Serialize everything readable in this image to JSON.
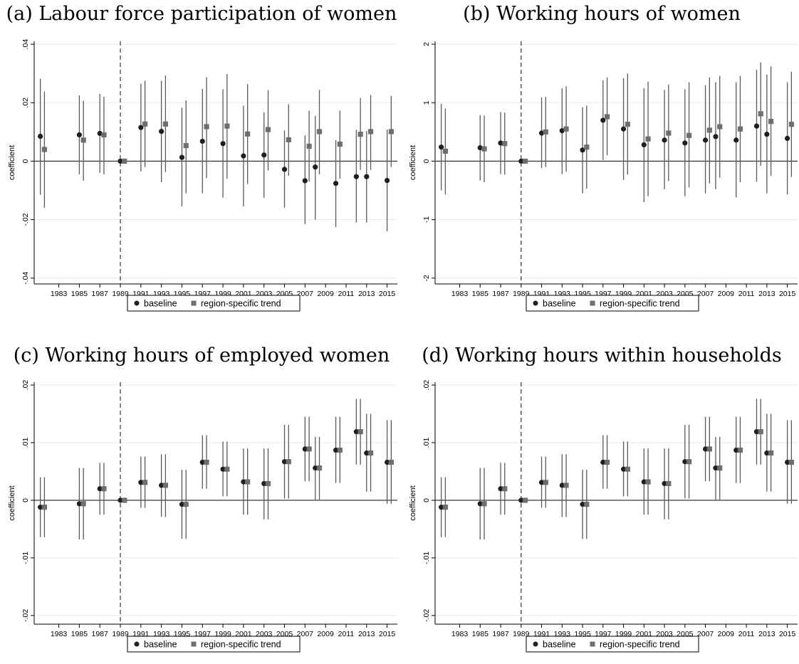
{
  "figure": {
    "baseline_color": "#1f1f1f",
    "trend_color": "#6e6e6e",
    "ci_color": "#5a5a5a",
    "grid_color": "#e8e8e8"
  },
  "chart_data": [
    {
      "type": "scatter",
      "title": "(a) Labour force participation of women",
      "ylabel": "coefficient",
      "ylim": [
        -0.042,
        0.041
      ],
      "yticks": [
        -0.04,
        -0.02,
        0,
        0.02,
        0.04
      ],
      "ytick_labels": [
        "-.04",
        "-.02",
        "0",
        ".02",
        ".04"
      ],
      "xlim": [
        1980.6,
        2016.0
      ],
      "xticks": [
        1983,
        1985,
        1987,
        1989,
        1991,
        1993,
        1995,
        1997,
        1999,
        2001,
        2003,
        2005,
        2007,
        2009,
        2011,
        2013,
        2015
      ],
      "xtick_labels": [
        "1983",
        "1985",
        "1987",
        "1989",
        "1991",
        "1993",
        "1995",
        "1997",
        "1999",
        "2001",
        "2003",
        "2005",
        "2007",
        "2009",
        "2011",
        "2013",
        "2015"
      ],
      "reference_year": 1989,
      "grid": true,
      "legend": {
        "placement": "bottom",
        "entries": [
          "baseline",
          "region-specific trend"
        ]
      },
      "series": [
        {
          "name": "baseline",
          "marker": "circle",
          "x": [
            1981.2,
            1985,
            1987,
            1989,
            1991,
            1993,
            1995,
            1997,
            1999,
            2001,
            2003,
            2005,
            2007,
            2008,
            2010,
            2012,
            2013,
            2015
          ],
          "y": [
            0.0085,
            0.009,
            0.0095,
            0.0,
            0.0115,
            0.0102,
            0.0013,
            0.0068,
            0.006,
            0.0018,
            0.0021,
            -0.0028,
            -0.0067,
            -0.002,
            -0.0076,
            -0.0053,
            -0.0053,
            -0.0066
          ],
          "lo": [
            -0.0115,
            -0.0045,
            -0.004,
            0.0,
            -0.0035,
            -0.0072,
            -0.0155,
            -0.011,
            -0.0125,
            -0.0155,
            -0.0125,
            -0.016,
            -0.0215,
            -0.02,
            -0.0225,
            -0.021,
            -0.021,
            -0.024
          ],
          "hi": [
            0.0282,
            0.0225,
            0.023,
            0.0,
            0.0265,
            0.0275,
            0.0183,
            0.0247,
            0.0246,
            0.019,
            0.0167,
            0.0105,
            0.0088,
            0.0155,
            0.0072,
            0.0107,
            0.0103,
            0.0108
          ]
        },
        {
          "name": "region-specific trend",
          "marker": "square",
          "x": [
            1981.6,
            1985.4,
            1987.4,
            1989.4,
            1991.4,
            1993.4,
            1995.4,
            1997.4,
            1999.4,
            2001.4,
            2003.4,
            2005.4,
            2007.4,
            2008.4,
            2010.4,
            2012.4,
            2013.4,
            2015.4
          ],
          "y": [
            0.004,
            0.0072,
            0.009,
            0.0,
            0.0127,
            0.0127,
            0.0053,
            0.0118,
            0.012,
            0.0093,
            0.0108,
            0.0073,
            0.0051,
            0.0101,
            0.0058,
            0.0092,
            0.0101,
            0.0101
          ],
          "lo": [
            -0.016,
            -0.0067,
            -0.0045,
            0.0,
            -0.002,
            -0.0037,
            -0.011,
            -0.0058,
            -0.006,
            -0.0078,
            -0.0032,
            -0.005,
            -0.007,
            -0.0045,
            -0.006,
            -0.003,
            -0.003,
            -0.002
          ],
          "hi": [
            0.0238,
            0.0207,
            0.022,
            0.0,
            0.0275,
            0.0293,
            0.0208,
            0.0287,
            0.0298,
            0.0263,
            0.0243,
            0.0195,
            0.0173,
            0.0244,
            0.0173,
            0.0216,
            0.0226,
            0.0223
          ]
        }
      ]
    },
    {
      "type": "scatter",
      "title": "(b) Working hours of women",
      "ylabel": "coefficient",
      "ylim": [
        -2.1,
        2.05
      ],
      "yticks": [
        -2,
        -1,
        0,
        1,
        2
      ],
      "ytick_labels": [
        "-2",
        "-1",
        "0",
        "1",
        "2"
      ],
      "xlim": [
        1980.6,
        2016.0
      ],
      "xticks": [
        1983,
        1985,
        1987,
        1989,
        1991,
        1993,
        1995,
        1997,
        1999,
        2001,
        2003,
        2005,
        2007,
        2009,
        2011,
        2013,
        2015
      ],
      "xtick_labels": [
        "1983",
        "1985",
        "1987",
        "1989",
        "1991",
        "1993",
        "1995",
        "1997",
        "1999",
        "2001",
        "2003",
        "2005",
        "2007",
        "2009",
        "2011",
        "2013",
        "2015"
      ],
      "reference_year": 1989,
      "grid": true,
      "legend": {
        "placement": "bottom",
        "entries": [
          "baseline",
          "region-specific trend"
        ]
      },
      "series": [
        {
          "name": "baseline",
          "marker": "circle",
          "x": [
            1981.2,
            1985,
            1987,
            1989,
            1991,
            1993,
            1995,
            1997,
            1999,
            2001,
            2003,
            2005,
            2007,
            2008,
            2010,
            2012,
            2013,
            2015
          ],
          "y": [
            0.24,
            0.23,
            0.31,
            0.0,
            0.48,
            0.52,
            0.19,
            0.7,
            0.55,
            0.28,
            0.36,
            0.31,
            0.36,
            0.42,
            0.36,
            0.6,
            0.46,
            0.39
          ],
          "lo": [
            -0.5,
            -0.33,
            -0.22,
            0.0,
            -0.12,
            -0.22,
            -0.55,
            0.02,
            -0.32,
            -0.7,
            -0.48,
            -0.6,
            -0.55,
            -0.48,
            -0.62,
            -0.35,
            -0.55,
            -0.57
          ],
          "hi": [
            0.98,
            0.79,
            0.84,
            0.0,
            1.09,
            1.25,
            0.92,
            1.38,
            1.42,
            1.25,
            1.22,
            1.23,
            1.3,
            1.35,
            1.35,
            1.56,
            1.48,
            1.35
          ]
        },
        {
          "name": "region-specific trend",
          "marker": "square",
          "x": [
            1981.6,
            1985.4,
            1987.4,
            1989.4,
            1991.4,
            1993.4,
            1995.4,
            1997.4,
            1999.4,
            2001.4,
            2003.4,
            2005.4,
            2007.4,
            2008.4,
            2010.4,
            2012.4,
            2013.4,
            2015.4
          ],
          "y": [
            0.17,
            0.21,
            0.3,
            0.0,
            0.5,
            0.55,
            0.24,
            0.76,
            0.63,
            0.38,
            0.48,
            0.44,
            0.53,
            0.59,
            0.55,
            0.81,
            0.68,
            0.63
          ],
          "lo": [
            -0.57,
            -0.36,
            -0.23,
            0.0,
            -0.1,
            -0.18,
            -0.47,
            0.1,
            -0.23,
            -0.6,
            -0.34,
            -0.45,
            -0.38,
            -0.28,
            -0.36,
            -0.08,
            -0.25,
            -0.27
          ],
          "hi": [
            0.9,
            0.78,
            0.83,
            0.0,
            1.1,
            1.28,
            0.95,
            1.43,
            1.5,
            1.36,
            1.31,
            1.35,
            1.43,
            1.46,
            1.46,
            1.69,
            1.62,
            1.53
          ]
        }
      ]
    },
    {
      "type": "scatter",
      "title": "(c) Working hours of employed women",
      "ylabel": "coefficient",
      "ylim": [
        -0.0215,
        0.0205
      ],
      "yticks": [
        -0.02,
        -0.01,
        0,
        0.01,
        0.02
      ],
      "ytick_labels": [
        "-.02",
        "-.01",
        "0",
        ".01",
        ".02"
      ],
      "xlim": [
        1980.6,
        2016.0
      ],
      "xticks": [
        1983,
        1985,
        1987,
        1989,
        1991,
        1993,
        1995,
        1997,
        1999,
        2001,
        2003,
        2005,
        2007,
        2009,
        2011,
        2013,
        2015
      ],
      "xtick_labels": [
        "1983",
        "1985",
        "1987",
        "1989",
        "1991",
        "1993",
        "1995",
        "1997",
        "1999",
        "2001",
        "2003",
        "2005",
        "2007",
        "2009",
        "2011",
        "2013",
        "2015"
      ],
      "reference_year": 1989,
      "grid": true,
      "legend": {
        "placement": "bottom",
        "entries": [
          "baseline",
          "region-specific trend"
        ]
      },
      "series": [
        {
          "name": "baseline",
          "marker": "circle",
          "x": [
            1981.2,
            1985,
            1987,
            1989,
            1991,
            1993,
            1995,
            1997,
            1999,
            2001,
            2003,
            2005,
            2007,
            2008,
            2010,
            2012,
            2013,
            2015
          ],
          "y": [
            -0.0012,
            -0.0006,
            0.002,
            0.0,
            0.0031,
            0.0026,
            -0.0007,
            0.0066,
            0.0054,
            0.0032,
            0.0029,
            0.0067,
            0.0089,
            0.0056,
            0.0087,
            0.0119,
            0.0082,
            0.0066
          ],
          "lo": [
            -0.0064,
            -0.0068,
            -0.0025,
            0.0,
            -0.0013,
            -0.0029,
            -0.0067,
            0.002,
            0.0007,
            -0.0025,
            -0.0033,
            0.0003,
            0.0033,
            0.0001,
            0.003,
            0.0062,
            0.0015,
            -0.0006
          ],
          "hi": [
            0.004,
            0.0056,
            0.0065,
            0.0,
            0.0076,
            0.008,
            0.0053,
            0.0113,
            0.0102,
            0.009,
            0.009,
            0.0131,
            0.0145,
            0.011,
            0.0145,
            0.0176,
            0.015,
            0.0139
          ]
        },
        {
          "name": "region-specific trend",
          "marker": "square",
          "x": [
            1981.6,
            1985.4,
            1987.4,
            1989.4,
            1991.4,
            1993.4,
            1995.4,
            1997.4,
            1999.4,
            2001.4,
            2003.4,
            2005.4,
            2007.4,
            2008.4,
            2010.4,
            2012.4,
            2013.4,
            2015.4
          ],
          "y": [
            -0.0012,
            -0.0006,
            0.002,
            0.0,
            0.0031,
            0.0026,
            -0.0007,
            0.0066,
            0.0054,
            0.0032,
            0.0029,
            0.0067,
            0.0089,
            0.0056,
            0.0087,
            0.0119,
            0.0082,
            0.0066
          ],
          "lo": [
            -0.0064,
            -0.0068,
            -0.0025,
            0.0,
            -0.0013,
            -0.0029,
            -0.0067,
            0.002,
            0.0007,
            -0.0025,
            -0.0033,
            0.0003,
            0.0033,
            0.0001,
            0.003,
            0.0062,
            0.0015,
            -0.0006
          ],
          "hi": [
            0.004,
            0.0056,
            0.0065,
            0.0,
            0.0076,
            0.008,
            0.0053,
            0.0113,
            0.0102,
            0.009,
            0.009,
            0.0131,
            0.0145,
            0.011,
            0.0145,
            0.0176,
            0.015,
            0.0139
          ]
        }
      ]
    },
    {
      "type": "scatter",
      "title": "(d) Working hours within households",
      "ylabel": "coefficient",
      "ylim": [
        -0.0215,
        0.0205
      ],
      "yticks": [
        -0.02,
        -0.01,
        0,
        0.01,
        0.02
      ],
      "ytick_labels": [
        "-.02",
        "-.01",
        "0",
        ".01",
        ".02"
      ],
      "xlim": [
        1980.6,
        2016.0
      ],
      "xticks": [
        1983,
        1985,
        1987,
        1989,
        1991,
        1993,
        1995,
        1997,
        1999,
        2001,
        2003,
        2005,
        2007,
        2009,
        2011,
        2013,
        2015
      ],
      "xtick_labels": [
        "1983",
        "1985",
        "1987",
        "1989",
        "1991",
        "1993",
        "1995",
        "1997",
        "1999",
        "2001",
        "2003",
        "2005",
        "2007",
        "2009",
        "2011",
        "2013",
        "2015"
      ],
      "reference_year": 1989,
      "grid": true,
      "legend": {
        "placement": "bottom",
        "entries": [
          "baseline",
          "region-specific trend"
        ]
      },
      "series": [
        {
          "name": "baseline",
          "marker": "circle",
          "x": [
            1981.2,
            1985,
            1987,
            1989,
            1991,
            1993,
            1995,
            1997,
            1999,
            2001,
            2003,
            2005,
            2007,
            2008,
            2010,
            2012,
            2013,
            2015
          ],
          "y": [
            -0.0012,
            -0.0006,
            0.002,
            0.0,
            0.0031,
            0.0026,
            -0.0007,
            0.0066,
            0.0054,
            0.0032,
            0.0029,
            0.0067,
            0.0089,
            0.0056,
            0.0087,
            0.0119,
            0.0082,
            0.0066
          ],
          "lo": [
            -0.0064,
            -0.0068,
            -0.0025,
            0.0,
            -0.0013,
            -0.0029,
            -0.0067,
            0.002,
            0.0007,
            -0.0025,
            -0.0033,
            0.0003,
            0.0033,
            0.0001,
            0.003,
            0.0062,
            0.0015,
            -0.0006
          ],
          "hi": [
            0.004,
            0.0056,
            0.0065,
            0.0,
            0.0076,
            0.008,
            0.0053,
            0.0113,
            0.0102,
            0.009,
            0.009,
            0.0131,
            0.0145,
            0.011,
            0.0145,
            0.0176,
            0.015,
            0.0139
          ]
        },
        {
          "name": "region-specific trend",
          "marker": "square",
          "x": [
            1981.6,
            1985.4,
            1987.4,
            1989.4,
            1991.4,
            1993.4,
            1995.4,
            1997.4,
            1999.4,
            2001.4,
            2003.4,
            2005.4,
            2007.4,
            2008.4,
            2010.4,
            2012.4,
            2013.4,
            2015.4
          ],
          "y": [
            -0.0012,
            -0.0006,
            0.002,
            0.0,
            0.0031,
            0.0026,
            -0.0007,
            0.0066,
            0.0054,
            0.0032,
            0.0029,
            0.0067,
            0.0089,
            0.0056,
            0.0087,
            0.0119,
            0.0082,
            0.0066
          ],
          "lo": [
            -0.0064,
            -0.0068,
            -0.0025,
            0.0,
            -0.0013,
            -0.0029,
            -0.0067,
            0.002,
            0.0007,
            -0.0025,
            -0.0033,
            0.0003,
            0.0033,
            0.0001,
            0.003,
            0.0062,
            0.0015,
            -0.0006
          ],
          "hi": [
            0.004,
            0.0056,
            0.0065,
            0.0,
            0.0076,
            0.008,
            0.0053,
            0.0113,
            0.0102,
            0.009,
            0.009,
            0.0131,
            0.0145,
            0.011,
            0.0145,
            0.0176,
            0.015,
            0.0139
          ]
        }
      ]
    }
  ]
}
